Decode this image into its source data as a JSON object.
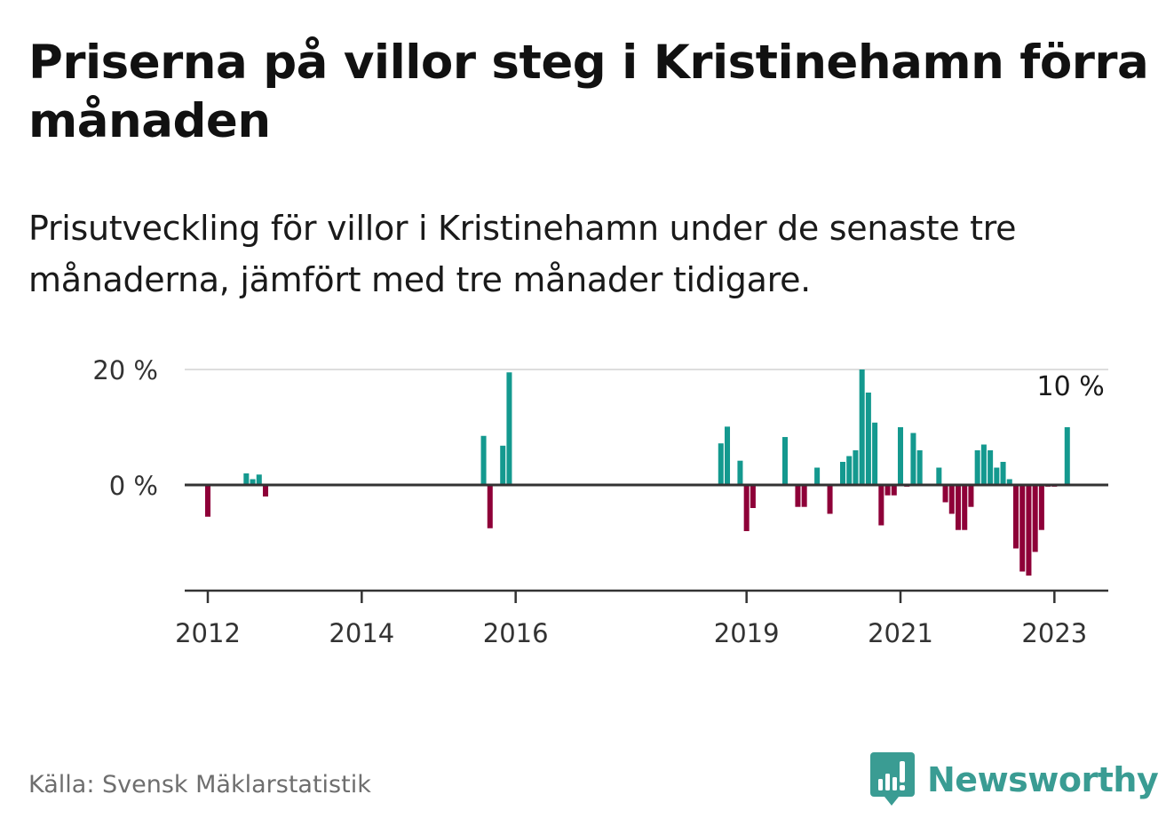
{
  "title": "Priserna på villor steg i Kristinehamn förra månaden",
  "subtitle": "Prisutveckling för villor i Kristinehamn under de senaste tre månaderna, jämfört med tre månader tidigare.",
  "source": "Källa: Svensk Mäklarstatistik",
  "brand": {
    "name": "Newsworthy",
    "icon": "newsworthy-logo-icon",
    "color": "#3a9c93"
  },
  "colors": {
    "positive": "#14998f",
    "negative": "#8e0038",
    "gridline": "#dddddd",
    "axis": "#333333"
  },
  "chart_data": {
    "type": "bar",
    "title": "",
    "xlabel": "",
    "ylabel": "",
    "ylim": [
      -18,
      20
    ],
    "y_ticks": [
      {
        "value": 0,
        "label": "0 %"
      },
      {
        "value": 20,
        "label": "20 %"
      }
    ],
    "x_ticks": [
      "2012",
      "2014",
      "2016",
      "2019",
      "2021",
      "2023"
    ],
    "annotation": {
      "label": "10 %",
      "x": "2023-03",
      "y": 10
    },
    "grid": "horizontal at 20 %",
    "legend": "none",
    "x": [
      "2012-01",
      "2012-07",
      "2012-08",
      "2012-09",
      "2012-10",
      "2015-08",
      "2015-09",
      "2015-11",
      "2015-12",
      "2018-09",
      "2018-10",
      "2018-12",
      "2019-01",
      "2019-02",
      "2019-07",
      "2019-09",
      "2019-10",
      "2019-12",
      "2020-02",
      "2020-04",
      "2020-05",
      "2020-06",
      "2020-07",
      "2020-08",
      "2020-09",
      "2020-10",
      "2020-11",
      "2020-12",
      "2021-01",
      "2021-02",
      "2021-03",
      "2021-04",
      "2021-07",
      "2021-08",
      "2021-09",
      "2021-10",
      "2021-11",
      "2021-12",
      "2022-01",
      "2022-02",
      "2022-03",
      "2022-04",
      "2022-05",
      "2022-06",
      "2022-07",
      "2022-08",
      "2022-09",
      "2022-10",
      "2022-11",
      "2022-12",
      "2023-01",
      "2023-03"
    ],
    "values": [
      -5.5,
      2,
      1,
      1.8,
      -2,
      8.5,
      -7.5,
      6.8,
      19.5,
      7.2,
      10.1,
      4.2,
      -8,
      -4,
      8.3,
      -3.8,
      -3.8,
      3,
      -5,
      4,
      5,
      6,
      20,
      16,
      10.8,
      -7,
      -1.8,
      -1.8,
      10,
      -0.3,
      9,
      6,
      3,
      -3,
      -5,
      -7.8,
      -7.8,
      -3.8,
      6,
      7,
      6,
      3,
      4,
      1,
      -11,
      -15,
      -15.7,
      -11.6,
      -7.8,
      -0.3,
      -0.3,
      10
    ]
  }
}
